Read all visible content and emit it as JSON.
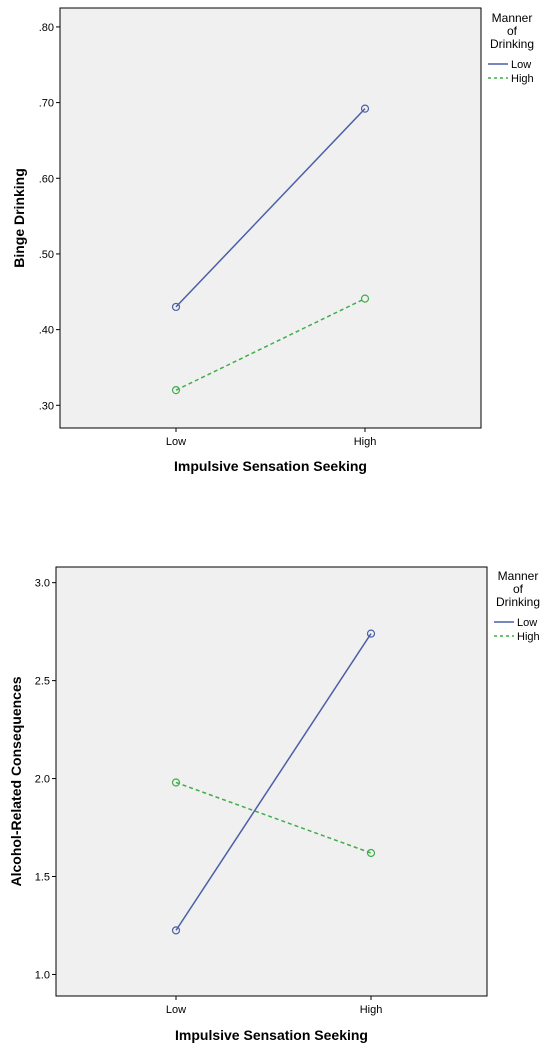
{
  "chart_data": [
    {
      "type": "line",
      "title": "",
      "xlabel": "Impulsive Sensation Seeking",
      "ylabel": "Binge Drinking",
      "categories": [
        "Low",
        "High"
      ],
      "ylim": [
        0.27,
        0.825
      ],
      "yticks": [
        0.3,
        0.4,
        0.5,
        0.6,
        0.7,
        0.8
      ],
      "ytick_labels": [
        ".30",
        ".40",
        ".50",
        ".60",
        ".70",
        ".80"
      ],
      "grid": false,
      "legend_title": [
        "Manner",
        "of",
        "Drinking"
      ],
      "legend_position": "right",
      "series": [
        {
          "name": "Low",
          "values": [
            0.43,
            0.692
          ],
          "color": "#4a5fa6",
          "dash": "solid"
        },
        {
          "name": "High",
          "values": [
            0.32,
            0.441
          ],
          "color": "#3fae49",
          "dash": "dashed"
        }
      ]
    },
    {
      "type": "line",
      "title": "",
      "xlabel": "Impulsive Sensation Seeking",
      "ylabel": "Alcohol-Related Consequences",
      "categories": [
        "Low",
        "High"
      ],
      "ylim": [
        0.89,
        3.08
      ],
      "yticks": [
        1.0,
        1.5,
        2.0,
        2.5,
        3.0
      ],
      "ytick_labels": [
        "1.0",
        "1.5",
        "2.0",
        "2.5",
        "3.0"
      ],
      "grid": false,
      "legend_title": [
        "Manner",
        "of",
        "Drinking"
      ],
      "legend_position": "right",
      "series": [
        {
          "name": "Low",
          "values": [
            1.225,
            2.74
          ],
          "color": "#4a5fa6",
          "dash": "solid"
        },
        {
          "name": "High",
          "values": [
            1.98,
            1.62
          ],
          "color": "#3fae49",
          "dash": "dashed"
        }
      ]
    }
  ]
}
